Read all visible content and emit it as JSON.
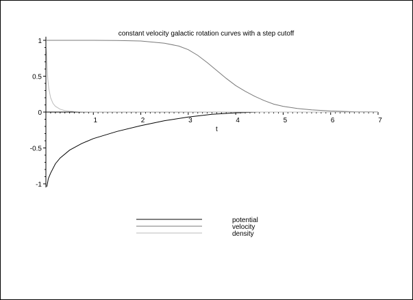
{
  "chart_data": {
    "type": "line",
    "title": "constant velocity galactic rotation curves with a step cutoff",
    "xlabel": "t",
    "ylabel": "",
    "xlim": [
      0,
      7
    ],
    "ylim": [
      -1.05,
      1.05
    ],
    "x_ticks": [
      1,
      2,
      3,
      4,
      5,
      6,
      7
    ],
    "y_ticks": [
      -1,
      -0.5,
      0,
      0.5,
      1
    ],
    "y_tick_labels": [
      "-1",
      "-0.5",
      "0",
      "0.5",
      "1"
    ],
    "grid": false,
    "legend": "bottom-center",
    "series": [
      {
        "name": "potential",
        "color": "#000000",
        "x": [
          0.02,
          0.05,
          0.1,
          0.2,
          0.3,
          0.5,
          0.75,
          1,
          1.5,
          2,
          2.5,
          3,
          3.5,
          4,
          4.5,
          5,
          6,
          7
        ],
        "values": [
          -1.04,
          -0.93,
          -0.85,
          -0.72,
          -0.64,
          -0.53,
          -0.44,
          -0.37,
          -0.27,
          -0.19,
          -0.12,
          -0.07,
          -0.03,
          -0.01,
          0,
          0,
          0,
          0
        ]
      },
      {
        "name": "velocity",
        "color": "#777777",
        "x": [
          0,
          0.5,
          1,
          1.5,
          2,
          2.5,
          2.8,
          3,
          3.2,
          3.4,
          3.6,
          3.8,
          4,
          4.2,
          4.4,
          4.6,
          4.8,
          5,
          5.3,
          5.6,
          6,
          6.5,
          7
        ],
        "values": [
          1,
          1,
          1,
          0.998,
          0.99,
          0.96,
          0.92,
          0.87,
          0.79,
          0.69,
          0.58,
          0.47,
          0.37,
          0.29,
          0.22,
          0.16,
          0.11,
          0.08,
          0.05,
          0.03,
          0.015,
          0.005,
          0.002
        ]
      },
      {
        "name": "density",
        "color": "#bbbbbb",
        "x": [
          0.01,
          0.02,
          0.04,
          0.06,
          0.1,
          0.15,
          0.2,
          0.3,
          0.4,
          0.5,
          0.6,
          0.8,
          1,
          7
        ],
        "values": [
          0.92,
          0.7,
          0.46,
          0.33,
          0.2,
          0.12,
          0.08,
          0.04,
          0.02,
          0.012,
          0.008,
          0.003,
          0.001,
          0
        ]
      }
    ]
  }
}
